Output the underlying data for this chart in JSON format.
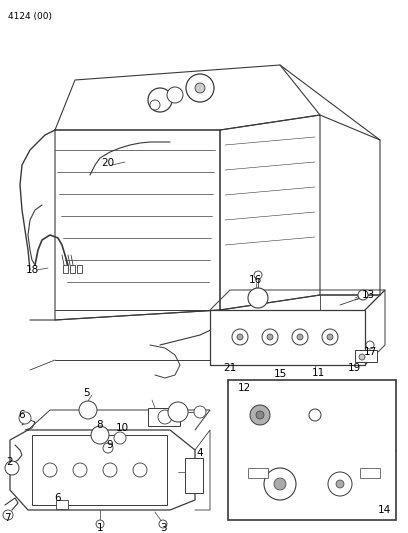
{
  "title": "4124 (00)",
  "bg_color": "#f5f5f0",
  "line_color": "#3a3a3a",
  "label_color": "#000000",
  "fig_width": 4.08,
  "fig_height": 5.33,
  "dpi": 100
}
